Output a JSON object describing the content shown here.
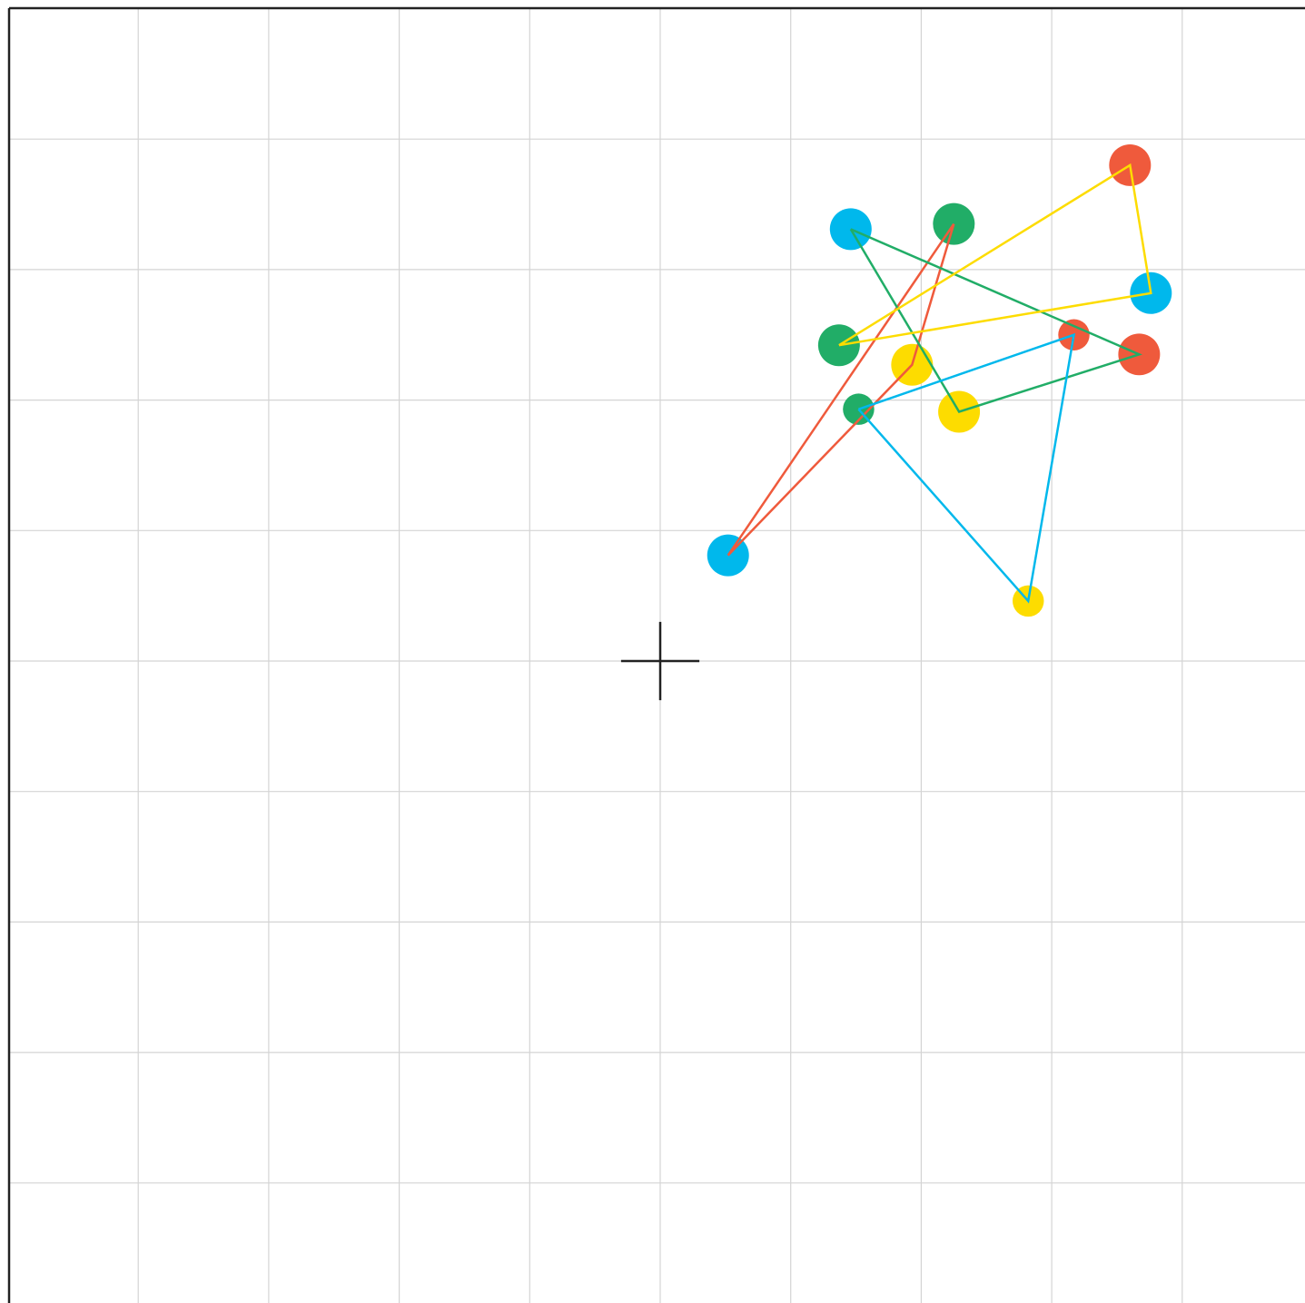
{
  "board": {
    "background": "#ffffff",
    "grid_color": "#d4d4d4",
    "border_color": "#222222",
    "grid": {
      "x_min": -5,
      "x_max": 5,
      "y_min": -5,
      "y_max": 5,
      "step": 1
    },
    "origin_marker": {
      "x": 0,
      "y": 0,
      "icon": "crosshair-icon"
    }
  },
  "colors": {
    "red": "#ef5a3c",
    "green": "#21ad67",
    "blue": "#00b8ec",
    "yellow": "#fddc00"
  },
  "points": [
    {
      "id": "red-1",
      "color": "red",
      "x": 3.6,
      "y": 3.8,
      "radius": 0.16
    },
    {
      "id": "red-2",
      "color": "red",
      "x": 3.17,
      "y": 2.5,
      "radius": 0.12
    },
    {
      "id": "red-3",
      "color": "red",
      "x": 3.67,
      "y": 2.35,
      "radius": 0.16
    },
    {
      "id": "green-1",
      "color": "green",
      "x": 2.25,
      "y": 3.35,
      "radius": 0.16
    },
    {
      "id": "green-2",
      "color": "green",
      "x": 1.37,
      "y": 2.42,
      "radius": 0.16
    },
    {
      "id": "green-3",
      "color": "green",
      "x": 1.52,
      "y": 1.93,
      "radius": 0.12
    },
    {
      "id": "blue-1",
      "color": "blue",
      "x": 1.46,
      "y": 3.31,
      "radius": 0.16
    },
    {
      "id": "blue-2",
      "color": "blue",
      "x": 3.76,
      "y": 2.82,
      "radius": 0.16
    },
    {
      "id": "blue-3",
      "color": "blue",
      "x": 0.52,
      "y": 0.81,
      "radius": 0.16
    },
    {
      "id": "yellow-1",
      "color": "yellow",
      "x": 1.93,
      "y": 2.27,
      "radius": 0.16
    },
    {
      "id": "yellow-2",
      "color": "yellow",
      "x": 2.29,
      "y": 1.91,
      "radius": 0.16
    },
    {
      "id": "yellow-3",
      "color": "yellow",
      "x": 2.82,
      "y": 0.46,
      "radius": 0.12
    }
  ],
  "paths": [
    {
      "id": "red-path",
      "color": "red",
      "points": [
        [
          2.25,
          3.35
        ],
        [
          1.93,
          2.27
        ],
        [
          0.52,
          0.81
        ],
        [
          2.25,
          3.35
        ]
      ]
    },
    {
      "id": "green-path",
      "color": "green",
      "points": [
        [
          1.46,
          3.31
        ],
        [
          3.67,
          2.35
        ],
        [
          2.29,
          1.91
        ],
        [
          1.46,
          3.31
        ]
      ]
    },
    {
      "id": "blue-path",
      "color": "blue",
      "points": [
        [
          1.52,
          1.93
        ],
        [
          3.17,
          2.5
        ],
        [
          2.82,
          0.46
        ],
        [
          1.52,
          1.93
        ]
      ]
    },
    {
      "id": "yellow-path",
      "color": "yellow",
      "points": [
        [
          1.37,
          2.42
        ],
        [
          3.6,
          3.8
        ],
        [
          3.76,
          2.82
        ],
        [
          1.37,
          2.42
        ]
      ]
    }
  ]
}
